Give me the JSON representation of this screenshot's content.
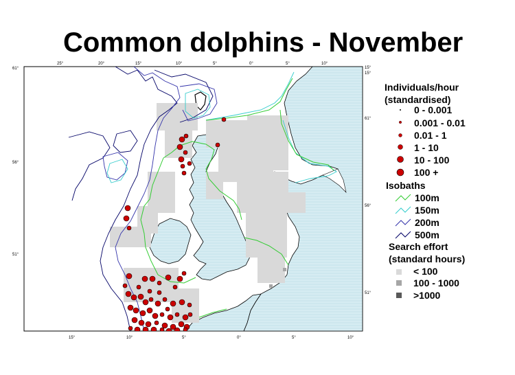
{
  "title": "Common dolphins - November",
  "map": {
    "top_ticks": [
      "25°",
      "20°",
      "15°",
      "10°",
      "5°",
      "0°",
      "5°",
      "10°"
    ],
    "bottom_ticks": [
      "15°",
      "10°",
      "5°",
      "0°",
      "5°",
      "10°"
    ],
    "left_ticks": [
      "61°",
      "56°",
      "51°"
    ],
    "right_ticks": [
      "15°",
      "61°",
      "56°",
      "51°"
    ],
    "right_top_tick": "15°",
    "colors": {
      "land": "#d6ecf2",
      "sea": "#ffffff",
      "effort_low": "#d9d9d9",
      "effort_mid": "#a6a6a6",
      "effort_high": "#595959",
      "dolphin_fill": "#cc0000",
      "isobath_100": "#33cc33",
      "isobath_150": "#33cccc",
      "isobath_200": "#3333aa",
      "isobath_500": "#000066"
    }
  },
  "legend": {
    "abundance_title_1": "Individuals/hour",
    "abundance_title_2": "(standardised)",
    "abundance_classes": [
      "0 - 0.001",
      "0.001 - 0.01",
      "0.01 - 1",
      "1 - 10",
      "10 - 100",
      "100 +"
    ],
    "isobaths_title": "Isobaths",
    "isobaths": [
      "100m",
      "150m",
      "200m",
      "500m"
    ],
    "effort_title_1": "Search effort",
    "effort_title_2": "(standard hours)",
    "effort_classes": [
      "< 100",
      "100 - 1000",
      ">1000"
    ]
  }
}
